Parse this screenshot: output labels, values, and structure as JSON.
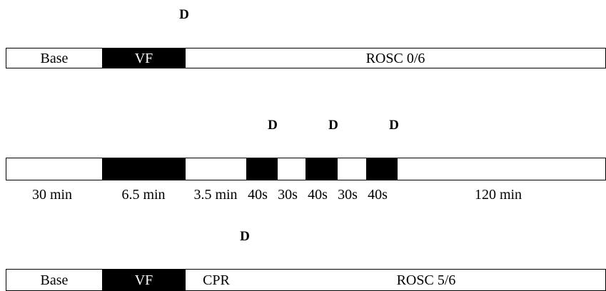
{
  "marker_label": "D",
  "row1": {
    "segments": [
      {
        "label": "Base",
        "dark": false
      },
      {
        "label": "VF",
        "dark": true
      },
      {
        "label": "ROSC 0/6",
        "dark": false
      }
    ]
  },
  "row2": {
    "durations": [
      "30 min",
      "6.5 min",
      "3.5 min",
      "40s",
      "30s",
      "40s",
      "30s",
      "40s",
      "120 min"
    ]
  },
  "row3": {
    "segments": [
      {
        "label": "Base",
        "dark": false
      },
      {
        "label": "VF",
        "dark": true
      },
      {
        "label": "CPR",
        "dark": false
      },
      {
        "label": "ROSC 5/6",
        "dark": false
      }
    ]
  }
}
